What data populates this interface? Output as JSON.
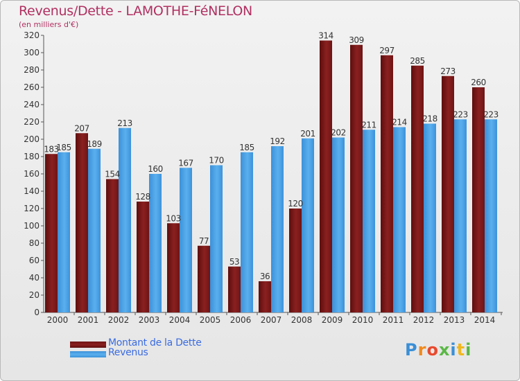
{
  "chart_data": {
    "type": "bar",
    "title": "Revenus/Dette - LAMOTHE-FéNELON",
    "subtitle": "(en milliers d'€)",
    "categories": [
      "2000",
      "2001",
      "2002",
      "2003",
      "2004",
      "2005",
      "2006",
      "2007",
      "2008",
      "2009",
      "2010",
      "2011",
      "2012",
      "2013",
      "2014"
    ],
    "series": [
      {
        "name": "Montant de la Dette",
        "color": "#8b1a1a",
        "values": [
          183,
          207,
          154,
          128,
          103,
          77,
          53,
          36,
          120,
          314,
          309,
          297,
          285,
          273,
          260
        ]
      },
      {
        "name": "Revenus",
        "color": "#4aa3e6",
        "values": [
          185,
          189,
          213,
          160,
          167,
          170,
          185,
          192,
          201,
          202,
          211,
          214,
          218,
          223,
          223
        ]
      }
    ],
    "ylim": [
      0,
      320
    ],
    "ytick_step": 20,
    "grid": false,
    "legend_position": "bottom-left"
  },
  "logo": {
    "letters": [
      "P",
      "r",
      "o",
      "x",
      "i",
      "t",
      "i"
    ],
    "colors": [
      "#3a8fd6",
      "#f08a1e",
      "#e84a2e",
      "#5ab846",
      "#3a8fd6",
      "#f0b81e",
      "#5ab846"
    ]
  }
}
